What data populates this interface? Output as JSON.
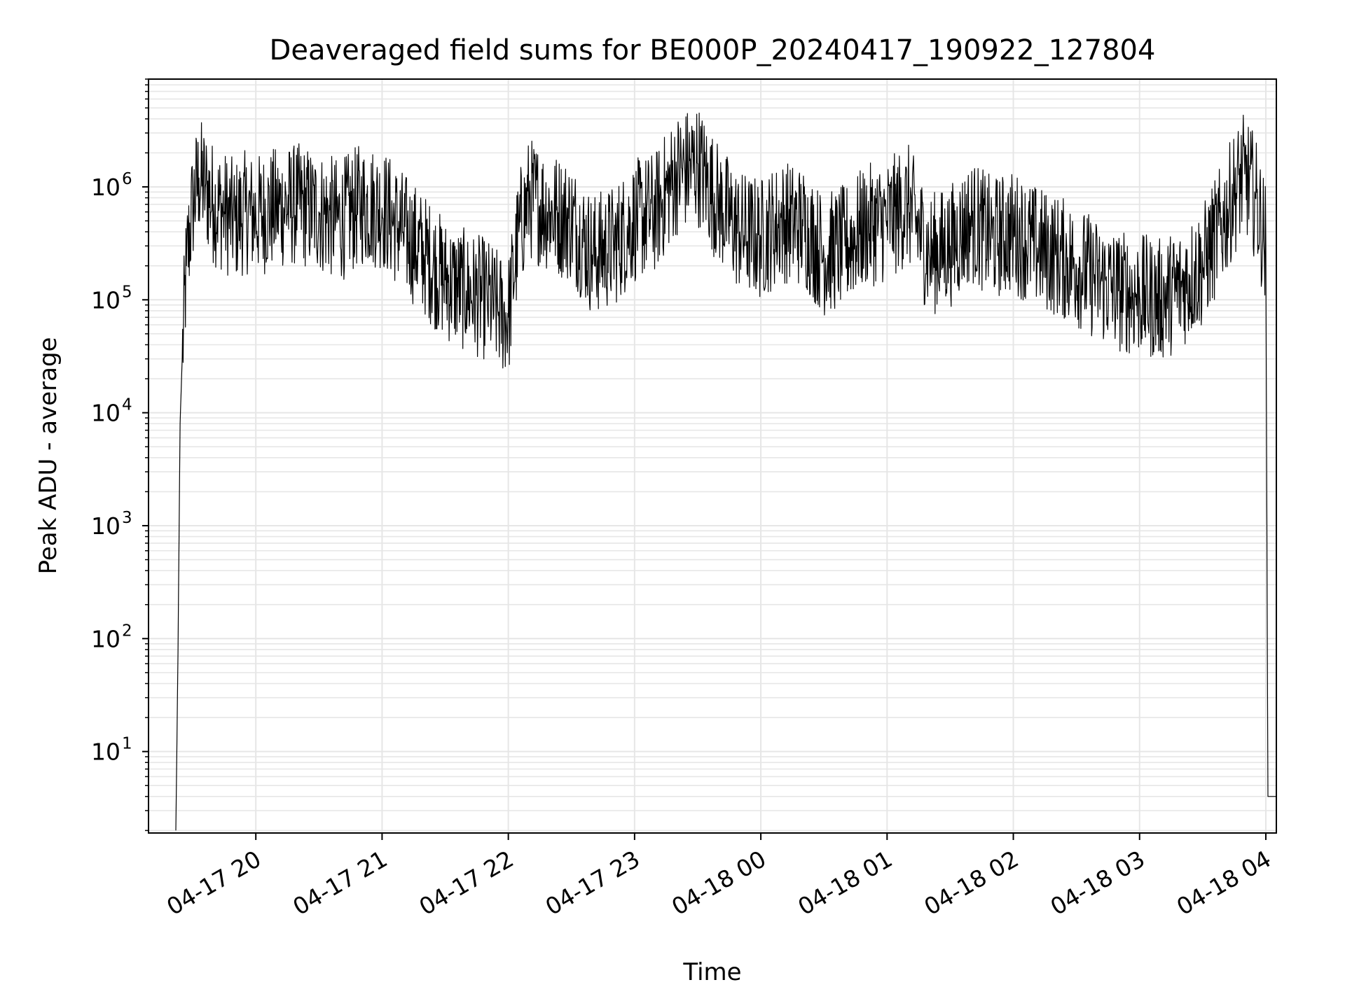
{
  "chart_data": {
    "type": "line",
    "title": "Deaveraged field sums for BE000P_20240417_190922_127804",
    "xlabel": "Time",
    "ylabel": "Peak ADU - average",
    "x_scale": "time",
    "y_scale": "log",
    "xlim": [
      "2024-04-17 19:09",
      "2024-04-18 04:05"
    ],
    "ylim": [
      1.9,
      9000000
    ],
    "grid": true,
    "grid_minor": true,
    "line_color": "#000000",
    "grid_color": "#e6e6e6",
    "x_ticks": [
      {
        "value": "2024-04-17 20:00",
        "label": "04-17 20"
      },
      {
        "value": "2024-04-17 21:00",
        "label": "04-17 21"
      },
      {
        "value": "2024-04-17 22:00",
        "label": "04-17 22"
      },
      {
        "value": "2024-04-17 23:00",
        "label": "04-17 23"
      },
      {
        "value": "2024-04-18 00:00",
        "label": "04-18 00"
      },
      {
        "value": "2024-04-18 01:00",
        "label": "04-18 01"
      },
      {
        "value": "2024-04-18 02:00",
        "label": "04-18 02"
      },
      {
        "value": "2024-04-18 03:00",
        "label": "04-18 03"
      },
      {
        "value": "2024-04-18 04:00",
        "label": "04-18 04"
      }
    ],
    "y_ticks": [
      {
        "value": 10,
        "base": "10",
        "exp": "1"
      },
      {
        "value": 100,
        "base": "10",
        "exp": "2"
      },
      {
        "value": 1000,
        "base": "10",
        "exp": "3"
      },
      {
        "value": 10000,
        "base": "10",
        "exp": "4"
      },
      {
        "value": 100000,
        "base": "10",
        "exp": "5"
      },
      {
        "value": 1000000,
        "base": "10",
        "exp": "6"
      }
    ],
    "series": [
      {
        "x": [
          "2024-04-17 19:22",
          "2024-04-17 19:23",
          "2024-04-17 19:24",
          "2024-04-17 19:25",
          "2024-04-17 19:27",
          "2024-04-17 19:30",
          "2024-04-17 19:33",
          "2024-04-17 19:36",
          "2024-04-17 19:40",
          "2024-04-17 19:45",
          "2024-04-17 19:50",
          "2024-04-17 19:55",
          "2024-04-17 20:00",
          "2024-04-17 20:10",
          "2024-04-17 20:20",
          "2024-04-17 20:30",
          "2024-04-17 20:40",
          "2024-04-17 20:50",
          "2024-04-17 21:00",
          "2024-04-17 21:10",
          "2024-04-17 21:20",
          "2024-04-17 21:30",
          "2024-04-17 21:40",
          "2024-04-17 21:50",
          "2024-04-17 21:55",
          "2024-04-17 22:00",
          "2024-04-17 22:05",
          "2024-04-17 22:10",
          "2024-04-17 22:20",
          "2024-04-17 22:30",
          "2024-04-17 22:40",
          "2024-04-17 22:50",
          "2024-04-17 23:00",
          "2024-04-17 23:10",
          "2024-04-17 23:20",
          "2024-04-17 23:30",
          "2024-04-17 23:40",
          "2024-04-17 23:50",
          "2024-04-18 00:00",
          "2024-04-18 00:10",
          "2024-04-18 00:20",
          "2024-04-18 00:30",
          "2024-04-18 00:40",
          "2024-04-18 00:50",
          "2024-04-18 01:00",
          "2024-04-18 01:10",
          "2024-04-18 01:20",
          "2024-04-18 01:30",
          "2024-04-18 01:40",
          "2024-04-18 01:50",
          "2024-04-18 02:00",
          "2024-04-18 02:10",
          "2024-04-18 02:20",
          "2024-04-18 02:30",
          "2024-04-18 02:40",
          "2024-04-18 02:50",
          "2024-04-18 03:00",
          "2024-04-18 03:10",
          "2024-04-18 03:20",
          "2024-04-18 03:30",
          "2024-04-18 03:40",
          "2024-04-18 03:45",
          "2024-04-18 03:50",
          "2024-04-18 03:55",
          "2024-04-18 04:00",
          "2024-04-18 04:01",
          "2024-04-18 04:02",
          "2024-04-18 04:05"
        ],
        "y": [
          2,
          75,
          8000,
          30000,
          200000,
          700000,
          1200000,
          1000000,
          700000,
          600000,
          500000,
          600000,
          550000,
          650000,
          700000,
          600000,
          500000,
          700000,
          650000,
          400000,
          250000,
          150000,
          120000,
          100000,
          80000,
          70000,
          400000,
          800000,
          600000,
          500000,
          250000,
          300000,
          500000,
          600000,
          1300000,
          1600000,
          700000,
          400000,
          350000,
          500000,
          450000,
          250000,
          300000,
          450000,
          500000,
          700000,
          250000,
          300000,
          500000,
          350000,
          400000,
          300000,
          250000,
          200000,
          150000,
          120000,
          110000,
          100000,
          130000,
          200000,
          500000,
          900000,
          1300000,
          800000,
          300000,
          4,
          4,
          4
        ]
      }
    ]
  }
}
